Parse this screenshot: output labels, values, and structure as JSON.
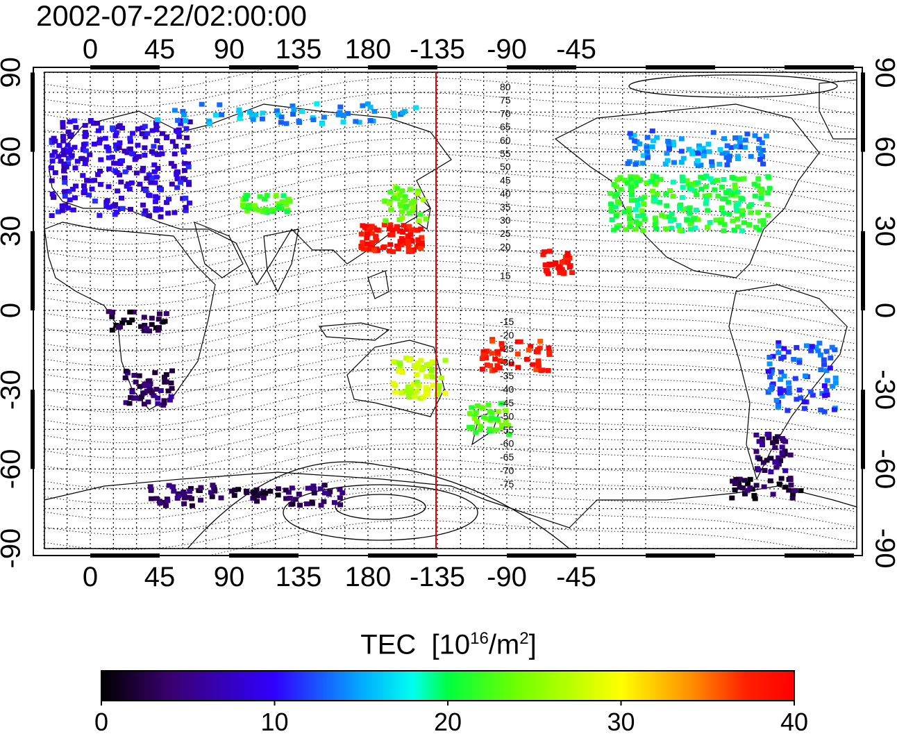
{
  "title": "2002-07-22/02:00:00",
  "map": {
    "lon_ticks_top": [
      "0",
      "45",
      "90",
      "135",
      "180",
      "-135",
      "-90",
      "-45"
    ],
    "lon_ticks_bottom": [
      "0",
      "45",
      "90",
      "135",
      "180",
      "-135",
      "-90",
      "-45"
    ],
    "lat_ticks_left": [
      "90",
      "60",
      "30",
      "0",
      "-30",
      "-60",
      "-90"
    ],
    "lat_ticks_right": [
      "90",
      "60",
      "30",
      "0",
      "-30",
      "-60",
      "-90"
    ],
    "magnetic_lat_labels_north": [
      "80",
      "75",
      "70",
      "65",
      "60",
      "55",
      "50",
      "45",
      "40",
      "35",
      "30",
      "25",
      "20",
      "15"
    ],
    "magnetic_lat_labels_south": [
      "-15",
      "-20",
      "-25",
      "-30",
      "-35",
      "-40",
      "-45",
      "-50",
      "-55",
      "-60",
      "-65",
      "-70",
      "-75"
    ],
    "colors": {
      "noon_meridian": "#e00000",
      "frame": "#000000"
    }
  },
  "colorbar": {
    "title": "TEC",
    "unit_prefix": "[10",
    "unit_exp": "16",
    "unit_mid": "/m",
    "unit_exp2": "2",
    "unit_suffix": "]",
    "ticks": [
      "0",
      "10",
      "20",
      "30",
      "40"
    ],
    "range": [
      0,
      40
    ],
    "colors": [
      "#000000",
      "#3a0070",
      "#3000ff",
      "#00b0ff",
      "#00ffee",
      "#00ff40",
      "#70ff00",
      "#ffff00",
      "#ff9000",
      "#ff2000",
      "#ff0000"
    ]
  }
}
